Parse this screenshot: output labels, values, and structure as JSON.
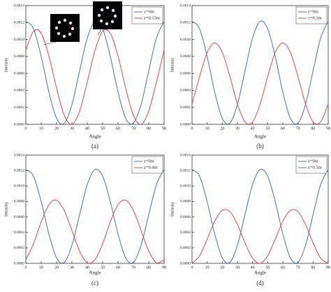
{
  "chart_data": [
    {
      "type": "line",
      "panel_label": "(a)",
      "xlabel": "Angle",
      "ylabel": "Intensity",
      "x": [
        0,
        5,
        10,
        15,
        20,
        25,
        30,
        35,
        40,
        45,
        50,
        55,
        60,
        65,
        70,
        75,
        80,
        85,
        90
      ],
      "xlim": [
        0,
        90
      ],
      "xticks": [
        0,
        10,
        20,
        30,
        40,
        50,
        60,
        70,
        80,
        90
      ],
      "ylim": [
        0,
        0.0014
      ],
      "yticks": [
        {
          "value": 0,
          "label": "0.0000"
        },
        {
          "value": 0.0002,
          "label": "0.0002"
        },
        {
          "value": 0.0004,
          "label": "0.0004"
        },
        {
          "value": 0.0006,
          "label": "0.0006"
        },
        {
          "value": 0.0008,
          "label": "0.0008"
        },
        {
          "value": 0.001,
          "label": "0.0010"
        },
        {
          "value": 0.0012,
          "label": "0.0012"
        },
        {
          "value": 0.0014,
          "label": "0.0014"
        }
      ],
      "legend": "upper right",
      "series": [
        {
          "name": "z=0m",
          "color": "#3f6fc4",
          "values": [
            0.001214,
            0.001127,
            0.000798,
            0.000381,
            7.1e-05,
            1.3e-05,
            0.000234,
            0.000631,
            0.001018,
            0.001214,
            0.001127,
            0.000798,
            0.000381,
            7.1e-05,
            1.3e-05,
            0.000234,
            0.000631,
            0.001018,
            0.001214
          ]
        },
        {
          "name": "z=0.15m",
          "color": "#e0484c",
          "values": [
            0.000873,
            0.001098,
            0.001072,
            0.000805,
            0.000425,
            0.000107,
            1e-06,
            0.000157,
            0.000501,
            0.000873,
            0.001098,
            0.001072,
            0.000805,
            0.000425,
            0.000107,
            1e-06,
            0.000157,
            0.000501,
            0.000873
          ]
        }
      ]
    },
    {
      "type": "line",
      "panel_label": "(b)",
      "xlabel": "Angle",
      "ylabel": "Intensity",
      "x": [
        0,
        5,
        10,
        15,
        20,
        25,
        30,
        35,
        40,
        45,
        50,
        55,
        60,
        65,
        70,
        75,
        80,
        85,
        90
      ],
      "xlim": [
        0,
        90
      ],
      "xticks": [
        0,
        10,
        20,
        30,
        40,
        50,
        60,
        70,
        80,
        90
      ],
      "ylim": [
        0,
        0.0014
      ],
      "yticks": [
        {
          "value": 0,
          "label": "0.0000"
        },
        {
          "value": 0.0002,
          "label": "0.0002"
        },
        {
          "value": 0.0004,
          "label": "0.0004"
        },
        {
          "value": 0.0006,
          "label": "0.0006"
        },
        {
          "value": 0.0008,
          "label": "0.0008"
        },
        {
          "value": 0.001,
          "label": "0.0010"
        },
        {
          "value": 0.0012,
          "label": "0.0012"
        },
        {
          "value": 0.0014,
          "label": "0.0014"
        }
      ],
      "legend": "upper right",
      "series": [
        {
          "name": "z=0m",
          "color": "#3f6fc4",
          "values": [
            0.001214,
            0.001127,
            0.000798,
            0.000381,
            7.1e-05,
            1.3e-05,
            0.000234,
            0.000631,
            0.001018,
            0.001214,
            0.001127,
            0.000798,
            0.000381,
            7.1e-05,
            1.3e-05,
            0.000234,
            0.000631,
            0.001018,
            0.001214
          ]
        },
        {
          "name": "z=0.3m",
          "color": "#e0484c",
          "values": [
            0.00024,
            0.000563,
            0.000848,
            0.00096,
            0.000848,
            0.000563,
            0.00024,
            2.9e-05,
            2.9e-05,
            0.00024,
            0.000563,
            0.000848,
            0.00096,
            0.000848,
            0.000563,
            0.00024,
            2.9e-05,
            2.9e-05,
            0.00024
          ]
        }
      ]
    },
    {
      "type": "line",
      "panel_label": "(c)",
      "xlabel": "Angle",
      "ylabel": "Intensity",
      "x": [
        0,
        5,
        10,
        15,
        20,
        25,
        30,
        35,
        40,
        45,
        50,
        55,
        60,
        65,
        70,
        75,
        80,
        85,
        90
      ],
      "xlim": [
        0,
        90
      ],
      "xticks": [
        0,
        10,
        20,
        30,
        40,
        50,
        60,
        70,
        80,
        90
      ],
      "ylim": [
        0,
        0.0014
      ],
      "yticks": [
        {
          "value": 0,
          "label": "0.0000"
        },
        {
          "value": 0.0002,
          "label": "0.0002"
        },
        {
          "value": 0.0004,
          "label": "0.0004"
        },
        {
          "value": 0.0006,
          "label": "0.0006"
        },
        {
          "value": 0.0008,
          "label": "0.0008"
        },
        {
          "value": 0.001,
          "label": "0.0010"
        },
        {
          "value": 0.0012,
          "label": "0.0012"
        },
        {
          "value": 0.0014,
          "label": "0.0014"
        }
      ],
      "legend": "upper right",
      "series": [
        {
          "name": "z=0m",
          "color": "#3f6fc4",
          "values": [
            0.001214,
            0.001127,
            0.000798,
            0.000381,
            7.1e-05,
            1.3e-05,
            0.000234,
            0.000631,
            0.001018,
            0.001214,
            0.001127,
            0.000798,
            0.000381,
            7.1e-05,
            1.3e-05,
            0.000234,
            0.000631,
            0.001018,
            0.001214
          ]
        },
        {
          "name": "z=0.4m",
          "color": "#e0484c",
          "values": [
            4.8e-05,
            0.000256,
            0.000537,
            0.000758,
            0.000816,
            0.000684,
            0.000424,
            0.000157,
            9e-06,
            4.8e-05,
            0.000256,
            0.000537,
            0.000758,
            0.000816,
            0.000684,
            0.000424,
            0.000157,
            9e-06,
            4.8e-05
          ]
        }
      ]
    },
    {
      "type": "line",
      "panel_label": "(d)",
      "xlabel": "Angle",
      "ylabel": "Intensity",
      "x": [
        0,
        5,
        10,
        15,
        20,
        25,
        30,
        35,
        40,
        45,
        50,
        55,
        60,
        65,
        70,
        75,
        80,
        85,
        90
      ],
      "xlim": [
        0,
        90
      ],
      "xticks": [
        0,
        10,
        20,
        30,
        40,
        50,
        60,
        70,
        80,
        90
      ],
      "ylim": [
        0,
        0.0014
      ],
      "yticks": [
        {
          "value": 0,
          "label": "0.0000"
        },
        {
          "value": 0.0002,
          "label": "0.0002"
        },
        {
          "value": 0.0004,
          "label": "0.0004"
        },
        {
          "value": 0.0006,
          "label": "0.0006"
        },
        {
          "value": 0.0008,
          "label": "0.0008"
        },
        {
          "value": 0.001,
          "label": "0.0010"
        },
        {
          "value": 0.0012,
          "label": "0.0012"
        },
        {
          "value": 0.0014,
          "label": "0.0014"
        }
      ],
      "legend": "upper right",
      "series": [
        {
          "name": "z=0m",
          "color": "#3f6fc4",
          "values": [
            0.001214,
            0.001127,
            0.000798,
            0.000381,
            7.1e-05,
            1.3e-05,
            0.000234,
            0.000631,
            0.001018,
            0.001214,
            0.001127,
            0.000798,
            0.000381,
            7.1e-05,
            1.3e-05,
            0.000234,
            0.000631,
            0.001018,
            0.001214
          ]
        },
        {
          "name": "z=0.5m",
          "color": "#e0484c",
          "values": [
            1e-06,
            9.8e-05,
            0.000313,
            0.000546,
            0.000686,
            0.00067,
            0.000503,
            0.000265,
            6.7e-05,
            1e-06,
            9.8e-05,
            0.000313,
            0.000546,
            0.000686,
            0.00067,
            0.000503,
            0.000265,
            6.7e-05,
            1e-06
          ]
        }
      ]
    }
  ]
}
